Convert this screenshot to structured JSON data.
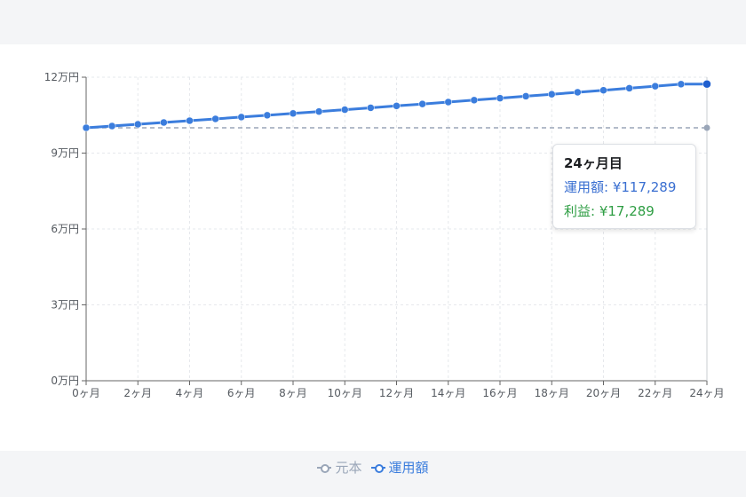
{
  "chart_data": {
    "type": "line",
    "x_ticks": [
      "0ヶ月",
      "2ヶ月",
      "4ヶ月",
      "6ヶ月",
      "8ヶ月",
      "10ヶ月",
      "12ヶ月",
      "14ヶ月",
      "16ヶ月",
      "18ヶ月",
      "20ヶ月",
      "22ヶ月",
      "24ヶ月"
    ],
    "y_ticks": [
      "0万円",
      "3万円",
      "6万円",
      "9万円",
      "12万円"
    ],
    "ylim": [
      0,
      120000
    ],
    "xlim": [
      0,
      24
    ],
    "months": [
      0,
      1,
      2,
      3,
      4,
      5,
      6,
      7,
      8,
      9,
      10,
      11,
      12,
      13,
      14,
      15,
      16,
      17,
      18,
      19,
      20,
      21,
      22,
      23,
      24
    ],
    "series": [
      {
        "name": "元本",
        "color": "#9aa6b8",
        "style": "dashed",
        "values": [
          100000,
          100000,
          100000,
          100000,
          100000,
          100000,
          100000,
          100000,
          100000,
          100000,
          100000,
          100000,
          100000,
          100000,
          100000,
          100000,
          100000,
          100000,
          100000,
          100000,
          100000,
          100000,
          100000,
          100000,
          100000
        ]
      },
      {
        "name": "運用額",
        "color": "#3b7ddd",
        "style": "solid",
        "values": [
          100000,
          100695,
          101394,
          102098,
          102807,
          103521,
          104240,
          104964,
          105693,
          106427,
          107166,
          107910,
          108659,
          109414,
          110174,
          110939,
          111709,
          112485,
          113266,
          114052,
          114844,
          115642,
          116445,
          117254,
          117289
        ]
      }
    ],
    "grid": true,
    "legend_position": "bottom"
  },
  "tooltip": {
    "title": "24ヶ月目",
    "amount_line": "運用額: ¥117,289",
    "profit_line": "利益: ¥17,289"
  },
  "legend": {
    "principal_label": "元本",
    "amount_label": "運用額"
  }
}
